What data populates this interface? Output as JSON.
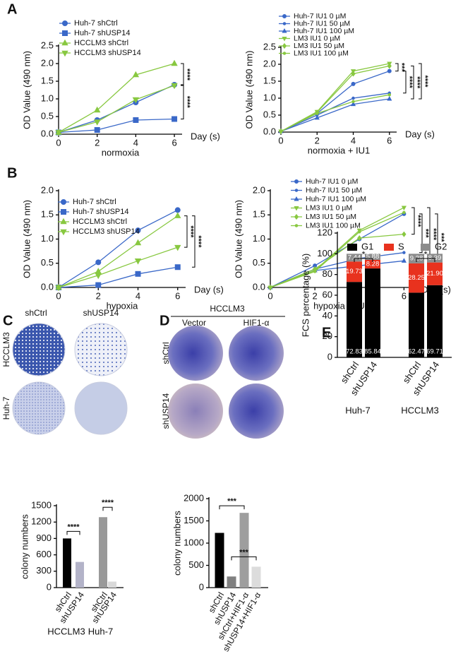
{
  "panel_labels": [
    "A",
    "B",
    "C",
    "D",
    "E"
  ],
  "panel_c_photos": {
    "columns": [
      "shCtrl",
      "shUSP14"
    ],
    "rows": [
      "HCCLM3",
      "Huh-7"
    ]
  },
  "panel_d_photos": {
    "group": "HCCLM3",
    "columns": [
      "Vector",
      "HIF1-α"
    ],
    "rows": [
      "shCtrl",
      "shUSP14"
    ]
  },
  "chart_data": [
    {
      "type": "line",
      "xlabel": "normoxia",
      "x_unit": "Day (s)",
      "ylabel": "OD Value (490 nm)",
      "x": [
        0,
        2,
        4,
        6
      ],
      "xlim": [
        0,
        6.4
      ],
      "xticks": [
        0,
        2,
        4,
        6
      ],
      "ylim": [
        0,
        2.5
      ],
      "yticks": [
        {
          "value": 0,
          "label": "0.0"
        },
        0.5,
        {
          "value": 1,
          "label": "1.0"
        },
        1.5,
        {
          "value": 2,
          "label": "2.0"
        },
        2.5
      ],
      "series": [
        {
          "name": "Huh-7 shCtrl",
          "color": "#3a68c8",
          "marker": "circle",
          "values": [
            0.05,
            0.4,
            0.9,
            1.4
          ]
        },
        {
          "name": "Huh-7 shUSP14",
          "color": "#3a68c8",
          "marker": "square",
          "values": [
            0.05,
            0.12,
            0.4,
            0.43
          ]
        },
        {
          "name": "HCCLM3 shCtrl",
          "color": "#88c840",
          "marker": "triangle",
          "values": [
            0.05,
            0.68,
            1.68,
            2.0
          ]
        },
        {
          "name": "HCCLM3 shUSP14",
          "color": "#88c840",
          "marker": "down-triangle",
          "values": [
            0.05,
            0.35,
            0.98,
            1.38
          ]
        }
      ],
      "annotations": [
        "****",
        "****"
      ]
    },
    {
      "type": "line",
      "xlabel": "normoxia + IU1",
      "x_unit": "Day (s)",
      "ylabel": "OD Value (490 nm)",
      "x": [
        0,
        2,
        4,
        6
      ],
      "xlim": [
        0,
        6.4
      ],
      "xticks": [
        0,
        2,
        4,
        6
      ],
      "ylim": [
        0,
        2.5
      ],
      "yticks": [
        {
          "value": 0,
          "label": "0.0"
        },
        0.5,
        {
          "value": 1,
          "label": "1.0"
        },
        1.5,
        {
          "value": 2,
          "label": "2.0"
        },
        2.5
      ],
      "series": [
        {
          "name": "Huh-7 IU1 0 µM",
          "color": "#3a68c8",
          "marker": "circle",
          "values": [
            0.02,
            0.55,
            1.42,
            1.8
          ]
        },
        {
          "name": "Huh-7 IU1 50 µM",
          "color": "#3a68c8",
          "marker": "dot",
          "values": [
            0.02,
            0.5,
            1.0,
            1.15
          ]
        },
        {
          "name": "Huh-7 IU1 100 µM",
          "color": "#3a68c8",
          "marker": "triangle",
          "values": [
            0.02,
            0.42,
            0.82,
            0.98
          ]
        },
        {
          "name": "LM3 IU1 0 µM",
          "color": "#88c840",
          "marker": "down-triangle",
          "values": [
            0.02,
            0.6,
            1.8,
            2.02
          ]
        },
        {
          "name": "LM3 IU1 50 µM",
          "color": "#88c840",
          "marker": "diamond",
          "values": [
            0.02,
            0.58,
            1.72,
            1.95
          ]
        },
        {
          "name": "LM3 IU1 100 µM",
          "color": "#88c840",
          "marker": "dot",
          "values": [
            0.02,
            0.55,
            0.9,
            1.1
          ]
        }
      ],
      "annotations": [
        "***",
        "****",
        "****",
        "****"
      ]
    },
    {
      "type": "line",
      "xlabel": "hypoxia",
      "x_unit": "Day (s)",
      "ylabel": "OD Value (490 nm)",
      "x": [
        0,
        2,
        4,
        6
      ],
      "xlim": [
        0,
        6.4
      ],
      "xticks": [
        0,
        2,
        4,
        6
      ],
      "ylim": [
        0,
        2.0
      ],
      "yticks": [
        {
          "value": 0,
          "label": "0.0"
        },
        0.5,
        {
          "value": 1,
          "label": "1.0"
        },
        1.5,
        {
          "value": 2,
          "label": "2.0"
        }
      ],
      "series": [
        {
          "name": "Huh-7 shCtrl",
          "color": "#3a68c8",
          "marker": "circle",
          "values": [
            0,
            0.52,
            1.18,
            1.6
          ]
        },
        {
          "name": "Huh-7 shUSP14",
          "color": "#3a68c8",
          "marker": "square",
          "values": [
            0,
            0.05,
            0.28,
            0.42
          ]
        },
        {
          "name": "HCCLM3 shCtrl",
          "color": "#88c840",
          "marker": "triangle",
          "values": [
            0,
            0.33,
            0.92,
            1.48
          ]
        },
        {
          "name": "HCCLM3 shUSP14",
          "color": "#88c840",
          "marker": "down-triangle",
          "values": [
            0,
            0.25,
            0.55,
            0.83
          ]
        }
      ],
      "annotations": [
        "****",
        "****"
      ]
    },
    {
      "type": "line",
      "xlabel": "hypoxia + IU1",
      "x_unit": "Day (s)",
      "ylabel": "OD Value (490 nm)",
      "x": [
        0,
        2,
        4,
        6
      ],
      "xlim": [
        0,
        6.4
      ],
      "xticks": [
        0,
        2,
        4,
        6
      ],
      "ylim": [
        0,
        2.0
      ],
      "yticks": [
        {
          "value": 0,
          "label": "0.0"
        },
        0.5,
        {
          "value": 1,
          "label": "1.0"
        },
        1.5,
        {
          "value": 2,
          "label": "2.0"
        }
      ],
      "series": [
        {
          "name": "Huh-7 IU1 0 µM",
          "color": "#3a68c8",
          "marker": "circle",
          "values": [
            0,
            0.45,
            1.0,
            1.52
          ]
        },
        {
          "name": "Huh-7 IU1 50 µM",
          "color": "#3a68c8",
          "marker": "dot",
          "values": [
            0,
            0.38,
            0.6,
            0.72
          ]
        },
        {
          "name": "Huh-7 IU1 100 µM",
          "color": "#3a68c8",
          "marker": "triangle",
          "values": [
            0,
            0.35,
            0.45,
            0.55
          ]
        },
        {
          "name": "LM3 IU1 0 µM",
          "color": "#88c840",
          "marker": "down-triangle",
          "values": [
            0,
            0.35,
            1.18,
            1.65
          ]
        },
        {
          "name": "LM3 IU1 50 µM",
          "color": "#88c840",
          "marker": "diamond",
          "values": [
            0,
            0.38,
            1.02,
            1.1
          ]
        },
        {
          "name": "LM3 IU1 100 µM",
          "color": "#88c840",
          "marker": "dot",
          "values": [
            0,
            0.33,
            1.15,
            1.55
          ]
        }
      ],
      "annotations": [
        "****",
        "***",
        "****",
        "***"
      ]
    },
    {
      "type": "bar",
      "ylabel": "colony numbers",
      "categories": [
        "shCtrl",
        "shUSP14",
        "shCtrl",
        "shUSP14"
      ],
      "groups": [
        "HCCLM3",
        "Huh-7"
      ],
      "values": [
        900,
        470,
        1290,
        110
      ],
      "colors": [
        "#000000",
        "#b3b3c8",
        "#999999",
        "#d9d9d9"
      ],
      "ylim": [
        0,
        1500
      ],
      "yticks": [
        0,
        300,
        600,
        900,
        1200,
        1500
      ],
      "annotations": [
        "****",
        "****"
      ]
    },
    {
      "type": "bar",
      "ylabel": "colony numbers",
      "categories": [
        "shCtrl",
        "shUSP14",
        "shCtrl+HIF1-α",
        "shUSP14+HIF1-α"
      ],
      "values": [
        1230,
        250,
        1680,
        470
      ],
      "colors": [
        "#000000",
        "#808080",
        "#9e9e9e",
        "#dcdcdc"
      ],
      "ylim": [
        0,
        2000
      ],
      "yticks": [
        0,
        500,
        1000,
        1500,
        2000
      ],
      "annotations": [
        "***",
        "***"
      ]
    },
    {
      "type": "stacked-bar",
      "ylabel": "FCS percentage (%)",
      "categories": [
        "shCtrl",
        "shUSP14",
        "shCtrl",
        "shUSP14"
      ],
      "groups": [
        "Huh-7",
        "HCCLM3"
      ],
      "ylim": [
        0,
        120
      ],
      "yticks": [
        0,
        20,
        40,
        60,
        80,
        100,
        120
      ],
      "series": [
        {
          "name": "G1",
          "color": "#000000",
          "values": [
            72.83,
            85.84,
            62.47,
            69.71
          ]
        },
        {
          "name": "S",
          "color": "#e8321e",
          "values": [
            19.73,
            8.28,
            28.25,
            21.9
          ],
          "value_labels": [
            "19.73",
            "8.28",
            "28.25",
            "21.90"
          ]
        },
        {
          "name": "G2",
          "color": "#8c8c8c",
          "values": [
            7.44,
            5.88,
            9.28,
            8.39
          ]
        }
      ],
      "annotations": [
        "*",
        "*"
      ]
    }
  ]
}
